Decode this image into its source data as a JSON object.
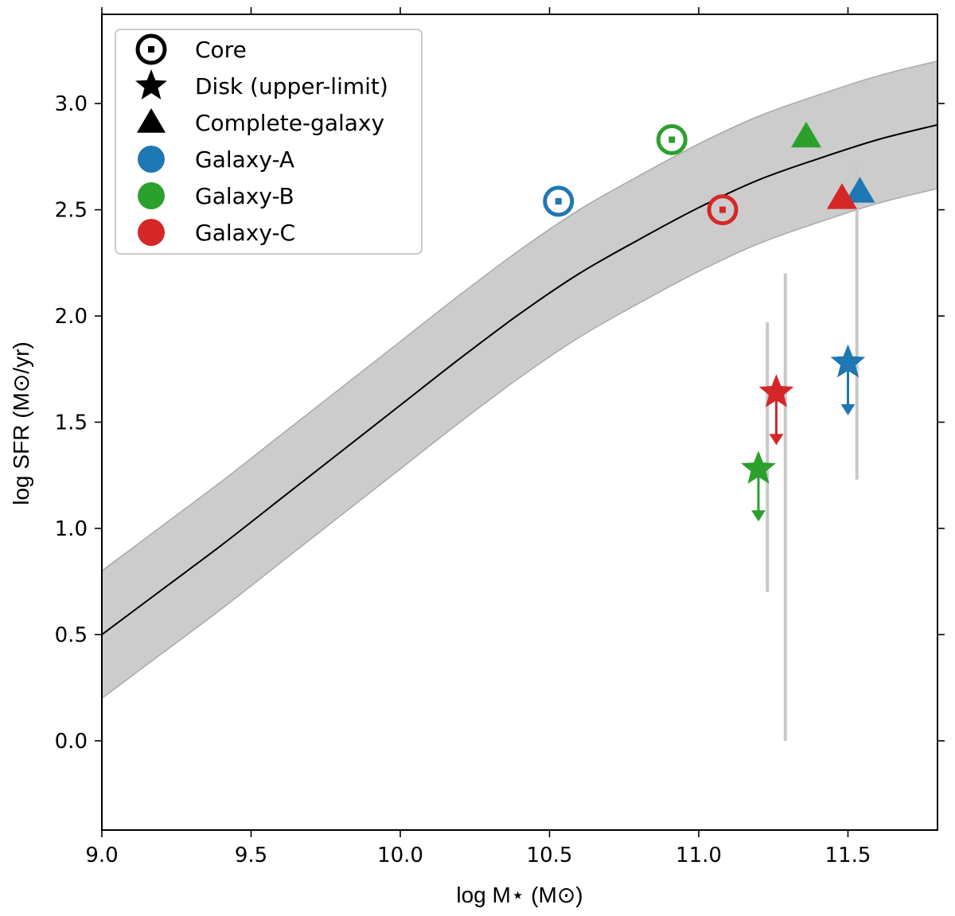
{
  "chart_data": {
    "type": "scatter",
    "xlabel": "log M⋆ (M⊙)",
    "ylabel": "log SFR (M⊙/yr)",
    "xlim": [
      9.0,
      11.8
    ],
    "ylim": [
      -0.42,
      3.42
    ],
    "xticks": [
      "9.0",
      "9.5",
      "10.0",
      "10.5",
      "11.0",
      "11.5"
    ],
    "yticks": [
      "0.0",
      "0.5",
      "1.0",
      "1.5",
      "2.0",
      "2.5",
      "3.0"
    ],
    "main_sequence": {
      "x": [
        9.0,
        9.2,
        9.4,
        9.6,
        9.8,
        10.0,
        10.2,
        10.4,
        10.6,
        10.8,
        11.0,
        11.2,
        11.4,
        11.6,
        11.8
      ],
      "y": [
        0.5,
        0.71,
        0.92,
        1.14,
        1.36,
        1.58,
        1.8,
        2.01,
        2.2,
        2.36,
        2.51,
        2.64,
        2.74,
        2.83,
        2.9
      ],
      "band_halfwidth": 0.3,
      "band_color": "#cccccc",
      "line_color": "#000000"
    },
    "series": [
      {
        "name": "Galaxy-A",
        "color": "#1f77b4",
        "core": {
          "x": 10.53,
          "y": 2.54
        },
        "disk": {
          "x": 11.5,
          "y": 1.78,
          "arrow_to": 1.54
        },
        "complete": {
          "x": 11.54,
          "y": 2.58
        },
        "errorbar": {
          "x": 11.53,
          "low": 1.23,
          "high": 2.71
        }
      },
      {
        "name": "Galaxy-B",
        "color": "#2ca02c",
        "core": {
          "x": 10.91,
          "y": 2.83
        },
        "disk": {
          "x": 11.2,
          "y": 1.28,
          "arrow_to": 1.04
        },
        "complete": {
          "x": 11.36,
          "y": 2.84
        },
        "errorbar": {
          "x": 11.23,
          "low": 0.7,
          "high": 1.97
        }
      },
      {
        "name": "Galaxy-C",
        "color": "#d62728",
        "core": {
          "x": 11.08,
          "y": 2.5
        },
        "disk": {
          "x": 11.26,
          "y": 1.64,
          "arrow_to": 1.4
        },
        "complete": {
          "x": 11.48,
          "y": 2.55
        },
        "errorbar": {
          "x": 11.29,
          "low": 0.0,
          "high": 2.2
        }
      }
    ],
    "legend": {
      "position": "top-left",
      "entries": [
        {
          "label": "Core",
          "marker": "core-symbol",
          "color": "#000000"
        },
        {
          "label": "Disk (upper-limit)",
          "marker": "star",
          "color": "#000000"
        },
        {
          "label": "Complete-galaxy",
          "marker": "triangle",
          "color": "#000000"
        },
        {
          "label": "Galaxy-A",
          "marker": "circle",
          "color": "#1f77b4"
        },
        {
          "label": "Galaxy-B",
          "marker": "circle",
          "color": "#2ca02c"
        },
        {
          "label": "Galaxy-C",
          "marker": "circle",
          "color": "#d62728"
        }
      ]
    },
    "errorbar_color": "#c8c8c8"
  }
}
